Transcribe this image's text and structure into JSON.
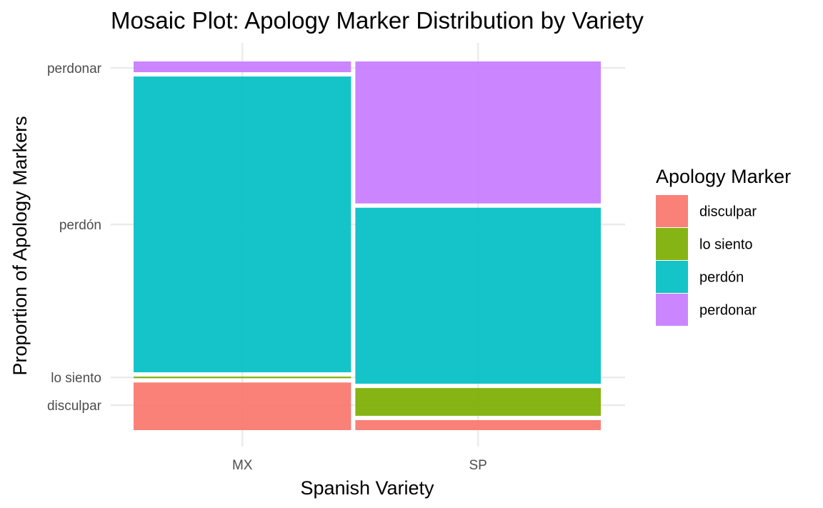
{
  "chart_data": {
    "type": "mosaic",
    "title": "Mosaic Plot: Apology Marker Distribution by Variety",
    "xlabel": "Spanish Variety",
    "ylabel": "Proportion of Apology Markers",
    "categories": [
      "MX",
      "SP"
    ],
    "category_widths": [
      0.47,
      0.53
    ],
    "markers": [
      "disculpar",
      "lo siento",
      "perdón",
      "perdonar"
    ],
    "series": [
      {
        "name": "disculpar",
        "color": "#F8766D",
        "values": [
          0.135,
          0.033
        ]
      },
      {
        "name": "lo siento",
        "color": "#7CAE00",
        "values": [
          0.016,
          0.087
        ]
      },
      {
        "name": "perdón",
        "color": "#00BFC4",
        "values": [
          0.814,
          0.489
        ]
      },
      {
        "name": "perdonar",
        "color": "#C77CFF",
        "values": [
          0.035,
          0.391
        ]
      }
    ],
    "y_tick_labels": [
      "disculpar",
      "lo siento",
      "perdón",
      "perdonar"
    ],
    "grid": true,
    "legend": {
      "title": "Apology Marker",
      "position": "right"
    }
  }
}
